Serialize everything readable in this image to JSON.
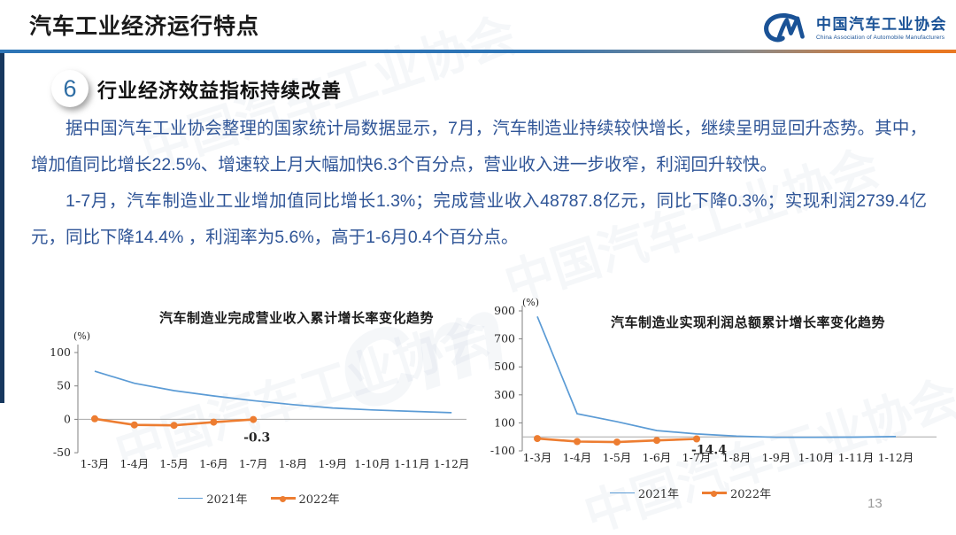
{
  "header": {
    "title": "汽车工业经济运行特点",
    "logo": {
      "acronym": "CM",
      "name_zh": "中国汽车工业协会",
      "name_en": "China Association of Automobile Manufacturers",
      "color": "#1A5296"
    }
  },
  "section": {
    "number": "6",
    "heading": "行业经济效益指标持续改善"
  },
  "paragraphs": [
    "据中国汽车工业协会整理的国家统计局数据显示，7月，汽车制造业持续较快增长，继续呈明显回升态势。其中，增加值同比增长22.5%、增速较上月大幅加快6.3个百分点，营业收入进一步收窄，利润回升较快。",
    "1-7月，汽车制造业工业增加值同比增长1.3%；完成营业收入48787.8亿元，同比下降0.3%；实现利润2739.4亿元，同比下降14.4% ，利润率为5.6%，高于1-6月0.4个百分点。"
  ],
  "page_number": "13",
  "colors": {
    "body_text": "#2F5597",
    "rule_blue": "#2E75B6",
    "rule_orange": "#E87722",
    "accent_navy": "#17375E",
    "line_2021": "#5B9BD5",
    "line_2022": "#ED7D31",
    "annotation_red": "#FF0000"
  },
  "chart_data": [
    {
      "type": "line",
      "title": "汽车制造业完成营业收入累计增长率变化趋势",
      "unit_label": "(%)",
      "xlabel": "",
      "ylabel": "(%)",
      "categories": [
        "1-3月",
        "1-4月",
        "1-5月",
        "1-6月",
        "1-7月",
        "1-8月",
        "1-9月",
        "1-10月",
        "1-11月",
        "1-12月"
      ],
      "yticks": [
        100,
        50,
        0,
        -50
      ],
      "ylim": [
        -50,
        115
      ],
      "grid": "zero-line-only",
      "legend_position": "bottom",
      "series": [
        {
          "name": "2021年",
          "color": "#5B9BD5",
          "marker": false,
          "values": [
            72,
            54,
            43,
            35,
            28,
            22,
            17,
            14,
            12,
            10
          ]
        },
        {
          "name": "2022年",
          "color": "#ED7D31",
          "marker": true,
          "values": [
            0.8,
            -8.4,
            -9.0,
            -4.2,
            -0.3
          ]
        }
      ],
      "annotation": {
        "text": "-0.3",
        "color": "#FF0000",
        "series": 1,
        "point_index": 4
      }
    },
    {
      "type": "line",
      "title": "汽车制造业实现利润总额累计增长率变化趋势",
      "unit_label": "(%)",
      "xlabel": "",
      "ylabel": "(%)",
      "categories": [
        "1-3月",
        "1-4月",
        "1-5月",
        "1-6月",
        "1-7月",
        "1-8月",
        "1-9月",
        "1-10月",
        "1-11月",
        "1-12月"
      ],
      "yticks": [
        900,
        700,
        500,
        300,
        100,
        -100
      ],
      "ylim": [
        -100,
        900
      ],
      "grid": "zero-line-only",
      "legend_position": "bottom",
      "series": [
        {
          "name": "2021年",
          "color": "#5B9BD5",
          "marker": false,
          "values": [
            860,
            165,
            108,
            45,
            21,
            5,
            -3,
            -3,
            -2,
            2
          ]
        },
        {
          "name": "2022年",
          "color": "#ED7D31",
          "marker": true,
          "values": [
            -11.9,
            -33.4,
            -37.5,
            -25.5,
            -14.4
          ]
        }
      ],
      "annotation": {
        "text": "-14.4",
        "color": "#FF0000",
        "series": 1,
        "point_index": 4
      }
    }
  ]
}
